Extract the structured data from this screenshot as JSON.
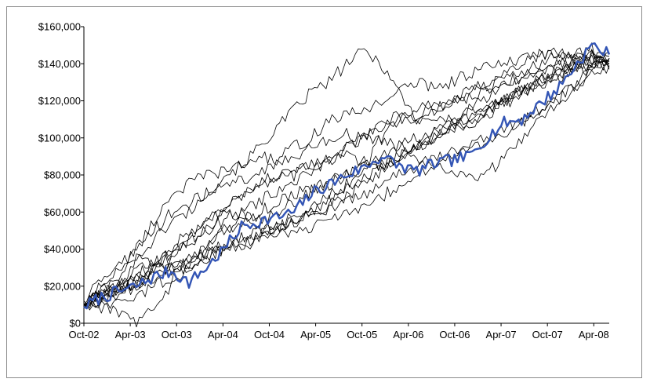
{
  "chart_data": {
    "type": "line",
    "title": "",
    "xlabel": "",
    "ylabel": "",
    "x_tick_labels": [
      "Oct-02",
      "Apr-03",
      "Oct-03",
      "Apr-04",
      "Oct-04",
      "Apr-05",
      "Oct-05",
      "Apr-06",
      "Oct-06",
      "Apr-07",
      "Oct-07",
      "Apr-08"
    ],
    "y_tick_labels": [
      "$0",
      "$20,000",
      "$40,000",
      "$60,000",
      "$80,000",
      "$100,000",
      "$120,000",
      "$140,000",
      "$160,000"
    ],
    "ylim": [
      0,
      160000
    ],
    "xlim_months": [
      0,
      68
    ],
    "grid": false,
    "legend": "none",
    "highlight_color": "#3355b5",
    "path_color": "#000000",
    "series": [
      {
        "highlight": true,
        "values": [
          9000,
          14000,
          17000,
          20000,
          25000,
          28000,
          22000,
          30000,
          40000,
          52000,
          55000,
          57000,
          60000,
          70000,
          75000,
          80000,
          84000,
          90000,
          85000,
          82000,
          86000,
          88000,
          90000,
          100000,
          108000,
          110000,
          118000,
          126000,
          138000,
          150000,
          145000
        ]
      },
      {
        "values": [
          10000,
          15000,
          20000,
          35000,
          45000,
          55000,
          60000,
          70000,
          80000,
          85000,
          95000,
          105000,
          115000,
          125000,
          130000,
          140000,
          147000,
          140000,
          125000,
          110000,
          115000,
          120000,
          125000,
          130000,
          135000,
          140000,
          145000,
          145000,
          142000,
          145000,
          143000
        ]
      },
      {
        "values": [
          10000,
          18000,
          25000,
          40000,
          55000,
          70000,
          75000,
          80000,
          82000,
          85000,
          90000,
          88000,
          95000,
          100000,
          110000,
          112000,
          115000,
          120000,
          125000,
          130000,
          128000,
          130000,
          135000,
          138000,
          140000,
          142000,
          145000,
          146000,
          142000,
          144000,
          142000
        ]
      },
      {
        "values": [
          10000,
          12000,
          15000,
          20000,
          30000,
          40000,
          50000,
          55000,
          62000,
          68000,
          75000,
          78000,
          80000,
          85000,
          90000,
          95000,
          100000,
          105000,
          110000,
          112000,
          115000,
          118000,
          122000,
          126000,
          130000,
          133000,
          136000,
          139000,
          142000,
          146000,
          144000
        ]
      },
      {
        "values": [
          10000,
          8000,
          10000,
          15000,
          20000,
          25000,
          30000,
          35000,
          40000,
          42000,
          48000,
          50000,
          55000,
          58000,
          62000,
          65000,
          70000,
          75000,
          80000,
          85000,
          88000,
          92000,
          95000,
          98000,
          102000,
          108000,
          115000,
          122000,
          130000,
          138000,
          141000
        ]
      },
      {
        "values": [
          12000,
          10000,
          5000,
          0,
          10000,
          20000,
          30000,
          40000,
          50000,
          55000,
          60000,
          65000,
          70000,
          72000,
          75000,
          80000,
          85000,
          90000,
          95000,
          100000,
          105000,
          110000,
          115000,
          118000,
          122000,
          125000,
          128000,
          132000,
          136000,
          140000,
          137000
        ]
      },
      {
        "values": [
          10000,
          15000,
          20000,
          25000,
          30000,
          35000,
          45000,
          55000,
          60000,
          58000,
          55000,
          60000,
          65000,
          72000,
          78000,
          80000,
          82000,
          85000,
          90000,
          95000,
          100000,
          105000,
          110000,
          115000,
          120000,
          125000,
          130000,
          135000,
          138000,
          140000,
          143000
        ]
      },
      {
        "values": [
          10000,
          14000,
          18000,
          22000,
          28000,
          32000,
          36000,
          40000,
          42000,
          46000,
          50000,
          52000,
          56000,
          60000,
          64000,
          68000,
          75000,
          82000,
          90000,
          95000,
          100000,
          105000,
          108000,
          112000,
          118000,
          124000,
          130000,
          134000,
          138000,
          142000,
          140000
        ]
      },
      {
        "values": [
          10000,
          16000,
          22000,
          28000,
          34000,
          38000,
          45000,
          50000,
          56000,
          60000,
          66000,
          70000,
          76000,
          82000,
          86000,
          90000,
          88000,
          85000,
          90000,
          95000,
          100000,
          104000,
          108000,
          115000,
          120000,
          128000,
          132000,
          136000,
          140000,
          141000,
          146000
        ]
      },
      {
        "values": [
          10000,
          20000,
          28000,
          35000,
          30000,
          28000,
          30000,
          40000,
          50000,
          55000,
          52000,
          50000,
          55000,
          60000,
          70000,
          75000,
          85000,
          100000,
          110000,
          115000,
          118000,
          120000,
          125000,
          128000,
          132000,
          136000,
          140000,
          144000,
          146000,
          148000,
          138000
        ]
      },
      {
        "values": [
          10000,
          25000,
          30000,
          40000,
          50000,
          60000,
          65000,
          70000,
          75000,
          78000,
          80000,
          85000,
          90000,
          95000,
          100000,
          102000,
          100000,
          98000,
          95000,
          90000,
          85000,
          80000,
          78000,
          80000,
          90000,
          100000,
          110000,
          118000,
          126000,
          134000,
          139000
        ]
      },
      {
        "values": [
          10000,
          12000,
          18000,
          22000,
          25000,
          30000,
          32000,
          35000,
          40000,
          42000,
          45000,
          48000,
          50000,
          52000,
          55000,
          58000,
          62000,
          68000,
          75000,
          80000,
          85000,
          90000,
          95000,
          100000,
          105000,
          110000,
          115000,
          120000,
          128000,
          135000,
          143000
        ]
      },
      {
        "values": [
          10000,
          14000,
          17000,
          21000,
          26000,
          30000,
          33000,
          38000,
          40000,
          44000,
          48000,
          53000,
          58000,
          62000,
          66000,
          72000,
          78000,
          84000,
          90000,
          96000,
          102000,
          108000,
          112000,
          116000,
          120000,
          126000,
          130000,
          135000,
          140000,
          144000,
          142000
        ]
      },
      {
        "values": [
          10000,
          16000,
          20000,
          26000,
          32000,
          38000,
          42000,
          50000,
          60000,
          70000,
          76000,
          80000,
          82000,
          84000,
          88000,
          94000,
          100000,
          108000,
          112000,
          110000,
          108000,
          110000,
          115000,
          122000,
          128000,
          132000,
          138000,
          140000,
          142000,
          140000,
          140000
        ]
      }
    ]
  }
}
